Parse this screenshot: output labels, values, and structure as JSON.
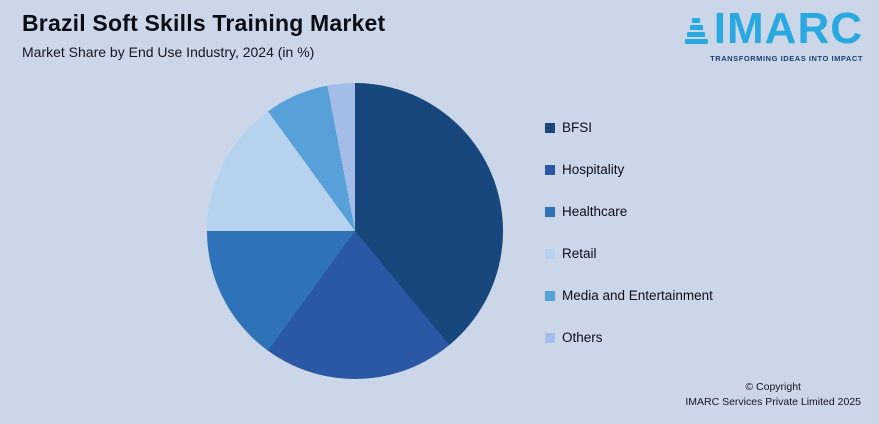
{
  "header": {
    "title": "Brazil Soft Skills Training Market",
    "subtitle": "Market Share by End Use Industry, 2024 (in %)"
  },
  "logo": {
    "name": "IMARC",
    "tagline": "TRANSFORMING IDEAS INTO IMPACT",
    "brand_color": "#29a9e1",
    "tagline_color": "#1e3f77"
  },
  "chart_data": {
    "type": "pie",
    "title": "Brazil Soft Skills Training Market",
    "subtitle": "Market Share by End Use Industry, 2024 (in %)",
    "unit": "%",
    "legend_position": "right",
    "start_angle": "top",
    "direction": "clockwise",
    "series": [
      {
        "name": "BFSI",
        "value": 39,
        "color": "#17477c"
      },
      {
        "name": "Hospitality",
        "value": 21,
        "color": "#2a58a4"
      },
      {
        "name": "Healthcare",
        "value": 15,
        "color": "#2e72b8"
      },
      {
        "name": "Retail",
        "value": 15,
        "color": "#b6d2ee"
      },
      {
        "name": "Media and Entertainment",
        "value": 7,
        "color": "#57a0d9"
      },
      {
        "name": "Others",
        "value": 3,
        "color": "#a3bde8"
      }
    ]
  },
  "footer": {
    "copyright_line1": "© Copyright",
    "copyright_line2": "IMARC Services Private Limited 2025"
  },
  "colors": {
    "background": "#ccd6e9"
  }
}
